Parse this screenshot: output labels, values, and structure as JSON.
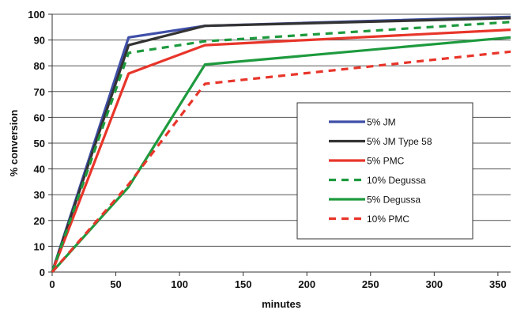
{
  "chart_data": {
    "type": "line",
    "title": "",
    "xlabel": "minutes",
    "ylabel": "% conversion",
    "xlim": [
      0,
      360
    ],
    "ylim": [
      0,
      100
    ],
    "x_ticks": [
      0,
      50,
      100,
      150,
      200,
      250,
      300,
      350
    ],
    "y_ticks": [
      0,
      10,
      20,
      30,
      40,
      50,
      60,
      70,
      80,
      90,
      100
    ],
    "grid": "horizontal",
    "legend_position": "right",
    "x": [
      0,
      60,
      120,
      360
    ],
    "series": [
      {
        "name": "5% JM",
        "values": [
          0,
          91,
          95.5,
          99
        ],
        "color": "#3f4fa8",
        "dash": "solid"
      },
      {
        "name": "5% JM Type 58",
        "values": [
          0,
          88,
          95.5,
          98.5
        ],
        "color": "#333333",
        "dash": "solid"
      },
      {
        "name": "5% PMC",
        "values": [
          0,
          77,
          88,
          94
        ],
        "color": "#e8352a",
        "dash": "solid"
      },
      {
        "name": "10% Degussa",
        "values": [
          0,
          85,
          89.5,
          97
        ],
        "color": "#1e9a3e",
        "dash": "dashed"
      },
      {
        "name": "5% Degussa",
        "values": [
          0,
          33,
          80.5,
          91
        ],
        "color": "#1e9a3e",
        "dash": "solid"
      },
      {
        "name": "10% PMC",
        "values": [
          0,
          34,
          73,
          85.5
        ],
        "color": "#e8352a",
        "dash": "dashed"
      }
    ]
  }
}
